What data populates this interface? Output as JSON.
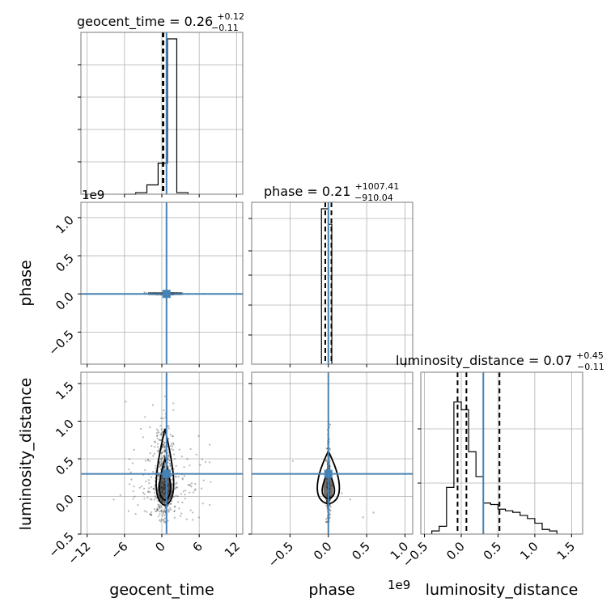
{
  "chart_data": {
    "type": "corner",
    "parameters": [
      "geocent_time",
      "phase",
      "luminosity_distance"
    ],
    "truth_color": "#4682b4",
    "diagonal": [
      {
        "param": "geocent_time",
        "title_main": "geocent_time = 0.26",
        "title_plus": "+0.12",
        "title_minus": "−0.11",
        "xlim": [
          -13,
          13
        ],
        "quantiles": [
          0.15,
          0.26,
          0.38
        ],
        "truth": 0.75,
        "bins": [
          -6,
          -4.2,
          -2.4,
          -0.6,
          0.9,
          2.4,
          4.2
        ],
        "density": [
          0,
          0.01,
          0.06,
          0.2,
          1.0,
          0.01
        ]
      },
      {
        "param": "phase",
        "title_main": "phase = 0.21",
        "title_plus": "+1007.41",
        "title_minus": "−910.04",
        "offset_label": "1e9",
        "xlim": [
          -1.0,
          1.1
        ],
        "quantiles": [
          -0.04,
          0.0,
          0.04
        ],
        "truth": 0.0,
        "bins": [
          -0.09,
          0.0,
          0.045
        ],
        "density": [
          1.0,
          0.9
        ]
      },
      {
        "param": "luminosity_distance",
        "title_main": "luminosity_distance = 0.07",
        "title_plus": "+0.45",
        "title_minus": "−0.11",
        "xlim": [
          -0.55,
          1.65
        ],
        "quantiles": [
          -0.05,
          0.07,
          0.52
        ],
        "truth": 0.3,
        "bins": [
          -0.4,
          -0.3,
          -0.2,
          -0.1,
          0.0,
          0.1,
          0.2,
          0.3,
          0.4,
          0.5,
          0.6,
          0.7,
          0.8,
          0.9,
          1.0,
          1.1,
          1.2,
          1.3
        ],
        "density": [
          0.02,
          0.05,
          0.3,
          0.85,
          0.8,
          0.53,
          0.37,
          0.2,
          0.19,
          0.16,
          0.15,
          0.14,
          0.12,
          0.1,
          0.07,
          0.03,
          0.02
        ]
      }
    ],
    "offdiagonal": [
      {
        "x": "geocent_time",
        "y": "phase",
        "xlim": [
          -13,
          13
        ],
        "ylim": [
          -0.92,
          1.2
        ],
        "y_offset_label": "1e9",
        "truth": [
          0.75,
          0.0
        ]
      },
      {
        "x": "geocent_time",
        "y": "luminosity_distance",
        "xlim": [
          -13,
          13
        ],
        "ylim": [
          -0.5,
          1.65
        ],
        "truth": [
          0.75,
          0.3
        ]
      },
      {
        "x": "phase",
        "y": "luminosity_distance",
        "xlim": [
          -1.0,
          1.1
        ],
        "ylim": [
          -0.5,
          1.65
        ],
        "truth": [
          0.0,
          0.3
        ]
      }
    ],
    "ticks": {
      "geocent_time": [
        "−12",
        "−6",
        "0",
        "6",
        "12"
      ],
      "phase_x": [
        "−0.5",
        "0.0",
        "0.5",
        "1.0"
      ],
      "phase_y": [
        "1.0",
        "0.5",
        "0.0",
        "−0.5"
      ],
      "luminosity_distance_x": [
        "−0.5",
        "0.0",
        "0.5",
        "1.0",
        "1.5"
      ],
      "luminosity_distance_y": [
        "1.5",
        "1.0",
        "0.5",
        "0.0",
        "−0.5"
      ]
    },
    "offset_label_x_phase": "1e9",
    "xlabel_1": "geocent_time",
    "xlabel_2": "phase",
    "xlabel_3": "luminosity_distance",
    "ylabel_2": "phase",
    "ylabel_3": "luminosity_distance"
  }
}
